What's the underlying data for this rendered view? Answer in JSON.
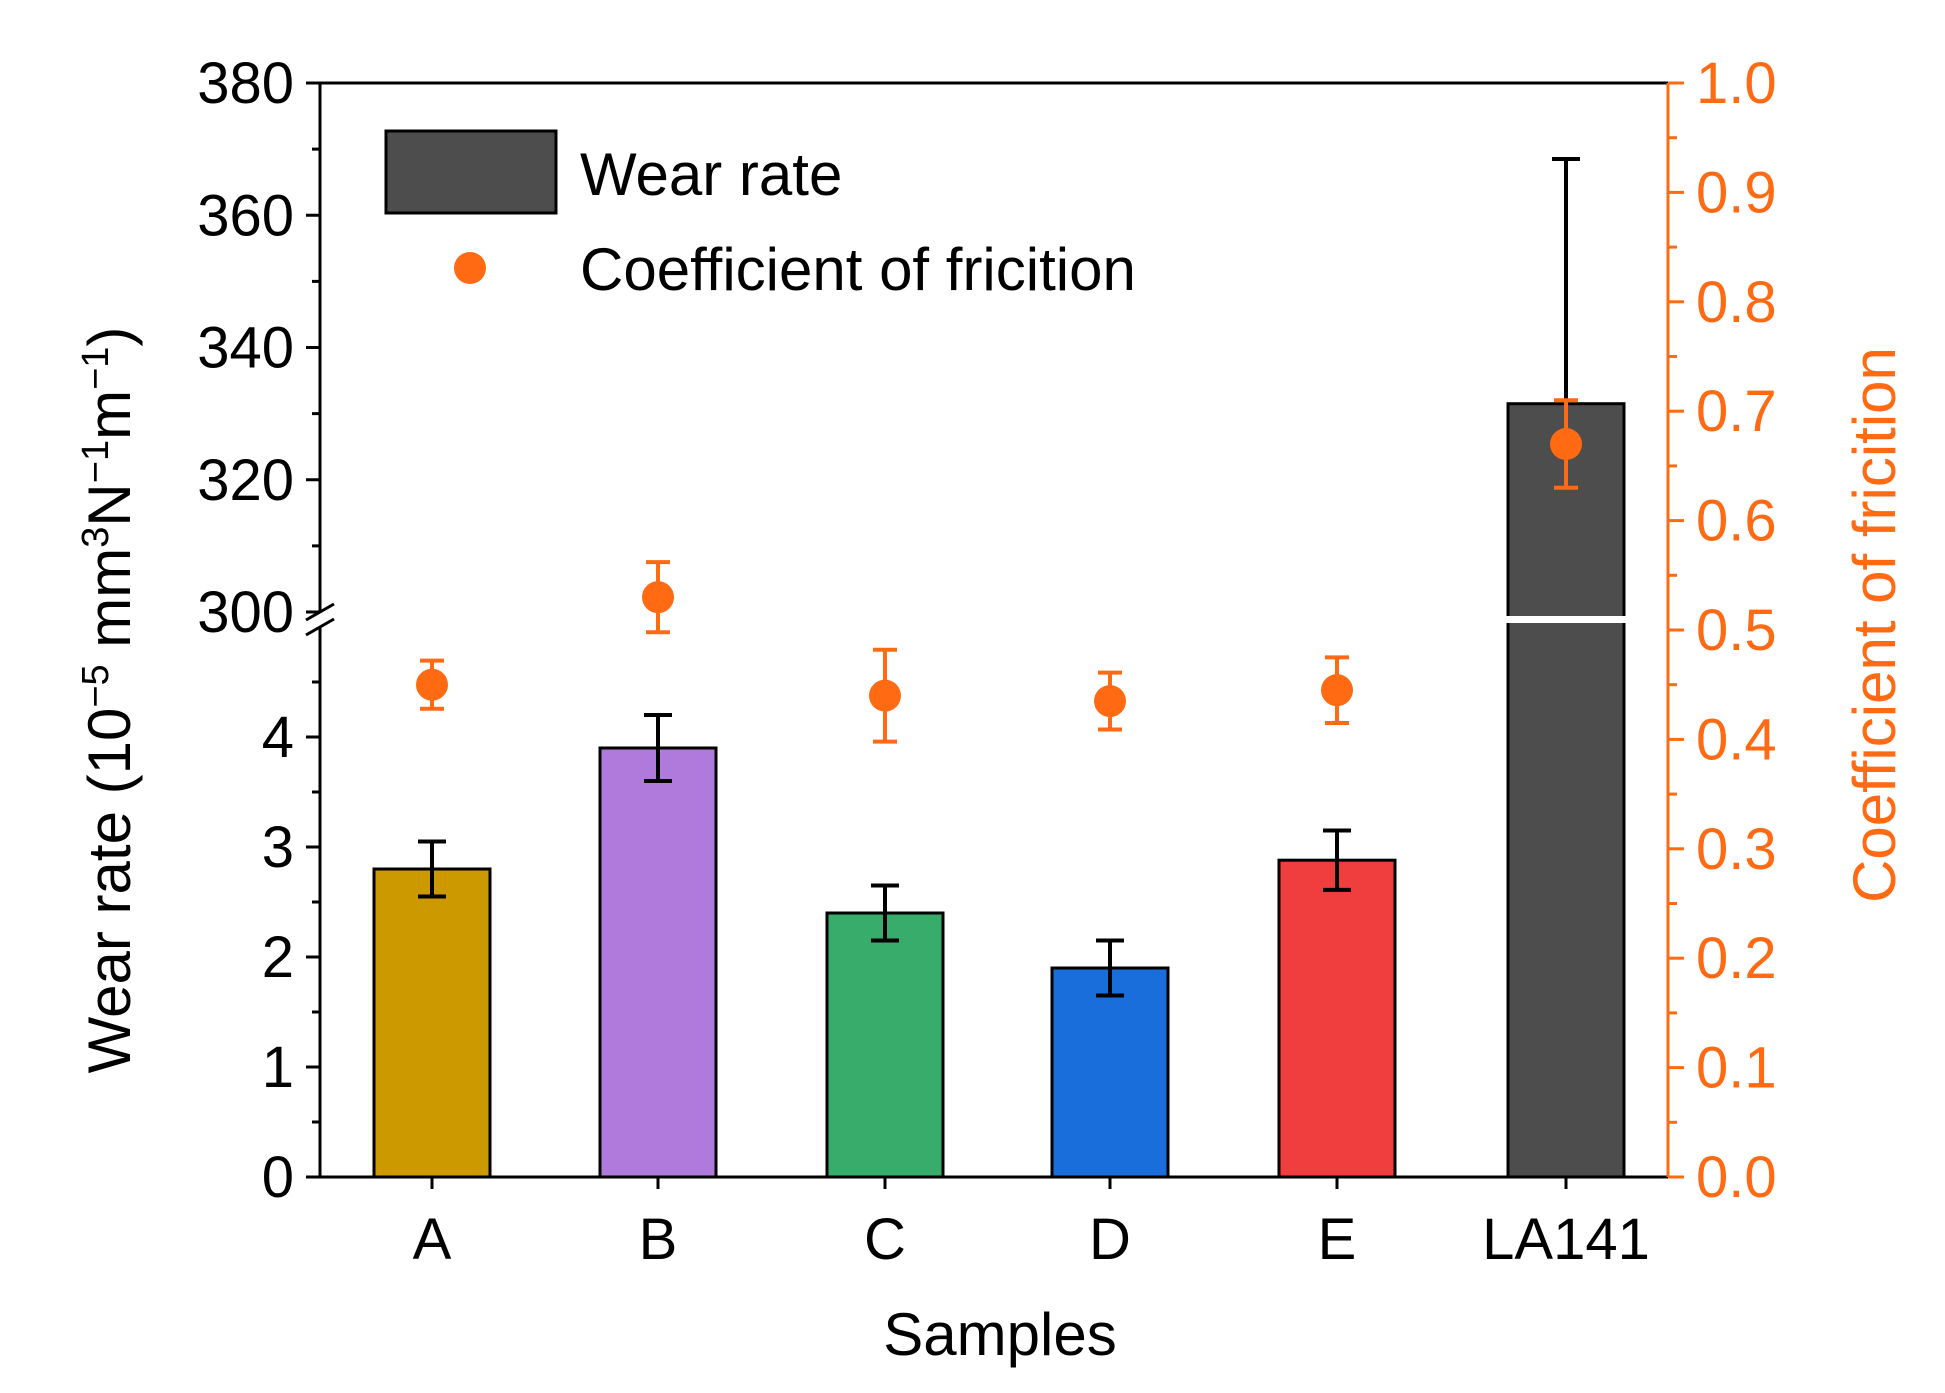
{
  "chart_data": {
    "type": "bar",
    "xlabel": "Samples",
    "ylabel_left": {
      "main": "Wear rate (10",
      "sup1": "−5",
      "mid1": " mm",
      "sup2": "3",
      "mid2": "N",
      "sup3": "−1",
      "mid3": "m",
      "sup4": "−1",
      "end": ")"
    },
    "ylabel_right": "Coefficient of fricition",
    "categories": [
      "A",
      "B",
      "C",
      "D",
      "E",
      "LA141"
    ],
    "series": [
      {
        "name": "Wear rate",
        "axis": "left",
        "values": [
          2.8,
          3.9,
          2.4,
          1.9,
          2.88,
          331.5
        ],
        "errors": [
          0.25,
          0.3,
          0.25,
          0.25,
          0.27,
          37
        ],
        "colors": [
          "#CC9900",
          "#B07ADC",
          "#38AC6A",
          "#1A6EDC",
          "#F03E3E",
          "#4D4D4D"
        ]
      },
      {
        "name": "Coefficient of fricition",
        "axis": "right",
        "values": [
          0.45,
          0.53,
          0.44,
          0.435,
          0.445,
          0.67
        ],
        "errors": [
          0.022,
          0.032,
          0.042,
          0.026,
          0.03,
          0.04
        ],
        "color": "#FF6A13"
      }
    ],
    "left_axis": {
      "broken": true,
      "lower_range": [
        0,
        5
      ],
      "upper_range": [
        300,
        380
      ],
      "lower_ticks": [
        "0",
        "1",
        "2",
        "3",
        "4"
      ],
      "upper_ticks": [
        "300",
        "320",
        "340",
        "360",
        "380"
      ]
    },
    "right_axis": {
      "range": [
        0,
        1.0
      ],
      "ticks": [
        "0.0",
        "0.1",
        "0.2",
        "0.3",
        "0.4",
        "0.5",
        "0.6",
        "0.7",
        "0.8",
        "0.9",
        "1.0"
      ]
    },
    "legend": {
      "position": "top-left",
      "entries": [
        "Wear rate",
        "Coefficient of fricition"
      ]
    },
    "colors": {
      "axis": "#000000",
      "right_axis": "#FF6A13"
    }
  }
}
